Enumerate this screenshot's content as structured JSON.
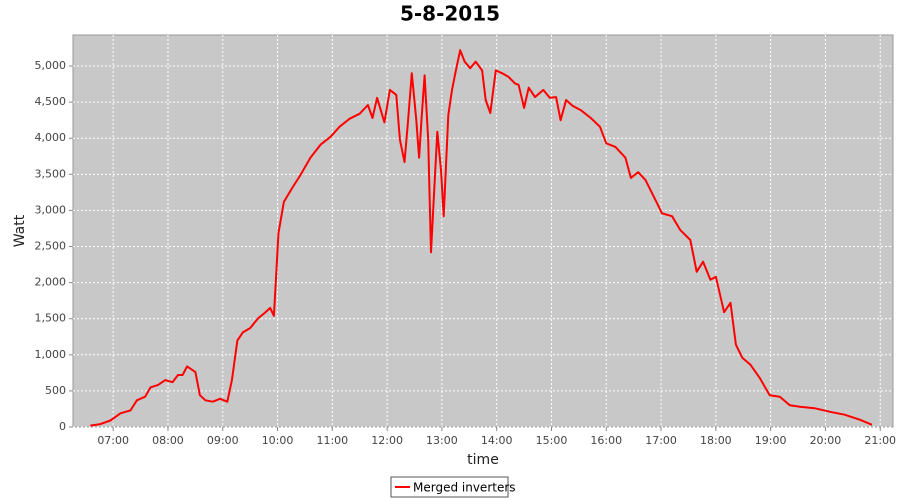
{
  "chart_data": {
    "type": "line",
    "title": "5-8-2015",
    "x_label": "time",
    "y_label": "Watt",
    "x": [
      "06:35",
      "06:46",
      "06:57",
      "07:08",
      "07:19",
      "07:26",
      "07:35",
      "07:41",
      "07:49",
      "07:57",
      "08:05",
      "08:11",
      "08:16",
      "08:21",
      "08:30",
      "08:35",
      "08:41",
      "08:49",
      "08:57",
      "09:05",
      "09:10",
      "09:16",
      "09:22",
      "09:30",
      "09:39",
      "09:46",
      "09:52",
      "09:56",
      "10:01",
      "10:07",
      "10:16",
      "10:25",
      "10:36",
      "10:47",
      "10:58",
      "11:08",
      "11:19",
      "11:30",
      "11:39",
      "11:44",
      "11:49",
      "11:57",
      "12:03",
      "12:10",
      "12:14",
      "12:19",
      "12:23",
      "12:27",
      "12:32",
      "12:35",
      "12:38",
      "12:41",
      "12:45",
      "12:48",
      "12:51",
      "12:55",
      "12:59",
      "13:02",
      "13:07",
      "13:11",
      "13:15",
      "13:20",
      "13:25",
      "13:31",
      "13:37",
      "13:44",
      "13:48",
      "13:53",
      "13:59",
      "14:06",
      "14:13",
      "14:20",
      "14:24",
      "14:30",
      "14:35",
      "14:42",
      "14:51",
      "14:58",
      "15:05",
      "15:10",
      "15:16",
      "15:23",
      "15:32",
      "15:43",
      "15:53",
      "16:00",
      "16:10",
      "16:21",
      "16:27",
      "16:35",
      "16:43",
      "16:54",
      "17:01",
      "17:12",
      "17:21",
      "17:32",
      "17:39",
      "17:46",
      "17:54",
      "18:00",
      "18:09",
      "18:16",
      "18:22",
      "18:29",
      "18:38",
      "18:48",
      "18:59",
      "19:10",
      "19:21",
      "19:32",
      "19:48",
      "20:05",
      "20:21",
      "20:38",
      "20:51"
    ],
    "series": [
      {
        "name": "Merged inverters",
        "color": "#ff0000",
        "values": [
          20,
          40,
          90,
          190,
          230,
          370,
          420,
          550,
          580,
          650,
          620,
          720,
          720,
          840,
          760,
          440,
          370,
          350,
          390,
          350,
          650,
          1200,
          1310,
          1370,
          1510,
          1580,
          1650,
          1540,
          2690,
          3120,
          3310,
          3490,
          3730,
          3910,
          4020,
          4160,
          4270,
          4340,
          4460,
          4280,
          4560,
          4220,
          4670,
          4600,
          3980,
          3670,
          4250,
          4900,
          4250,
          3730,
          4320,
          4870,
          3980,
          2420,
          3140,
          4090,
          3560,
          2920,
          4320,
          4670,
          4920,
          5220,
          5060,
          4970,
          5060,
          4940,
          4530,
          4350,
          4940,
          4900,
          4850,
          4760,
          4740,
          4420,
          4700,
          4570,
          4670,
          4560,
          4570,
          4250,
          4530,
          4450,
          4390,
          4280,
          4160,
          3930,
          3880,
          3730,
          3450,
          3530,
          3420,
          3140,
          2960,
          2920,
          2730,
          2590,
          2150,
          2290,
          2040,
          2080,
          1590,
          1720,
          1140,
          960,
          860,
          680,
          440,
          420,
          300,
          280,
          260,
          210,
          170,
          100,
          30
        ]
      }
    ],
    "xlim": [
      "06:16",
      "21:14"
    ],
    "xticks": [
      "07:00",
      "08:00",
      "09:00",
      "10:00",
      "11:00",
      "12:00",
      "13:00",
      "14:00",
      "15:00",
      "16:00",
      "17:00",
      "18:00",
      "19:00",
      "20:00",
      "21:00"
    ],
    "ylim": [
      0,
      5430
    ],
    "yticks": [
      0,
      500,
      {
        "value": 1000,
        "label": "1,000"
      },
      {
        "value": 1500,
        "label": "1,500"
      },
      {
        "value": 2000,
        "label": "2,000"
      },
      {
        "value": 2500,
        "label": "2,500"
      },
      {
        "value": 3000,
        "label": "3,000"
      },
      {
        "value": 3500,
        "label": "3,500"
      },
      {
        "value": 4000,
        "label": "4,000"
      },
      {
        "value": 4500,
        "label": "4,500"
      },
      {
        "value": 5000,
        "label": "5,000"
      }
    ],
    "grid": true,
    "legend": "bottom"
  }
}
